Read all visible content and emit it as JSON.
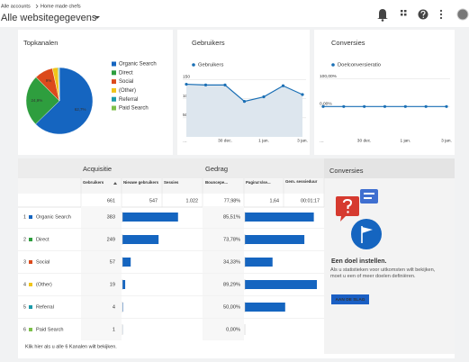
{
  "header": {
    "breadcrumb": [
      "Alle accounts",
      "Home made chefs"
    ],
    "title": "Alle websitegegevens"
  },
  "chart_data": [
    {
      "type": "pie",
      "title": "Topkanalen",
      "categories": [
        "Organic Search",
        "Direct",
        "Social",
        "(Other)",
        "Referral",
        "Paid Search"
      ],
      "values": [
        62.7,
        24.9,
        9,
        2.7,
        0.5,
        0.2
      ],
      "value_labels": [
        "62,7%",
        "24,9%",
        "9%",
        null,
        null,
        null
      ],
      "colors": [
        "#1565c0",
        "#2e9e3e",
        "#dc4a1c",
        "#f0c419",
        "#1b9aa9",
        "#7cc04a"
      ]
    },
    {
      "type": "line",
      "title": "Gebruikers",
      "categories": [
        "…",
        null,
        "30 dec.",
        null,
        "1 jan.",
        null,
        "3 jan."
      ],
      "series": [
        {
          "name": "Gebruikers",
          "color": "#1a6fb5",
          "values": [
            138,
            136,
            136,
            93,
            105,
            134,
            111
          ]
        }
      ],
      "ylim": [
        0,
        170
      ],
      "yticks": [
        50,
        100,
        150
      ],
      "grid": true,
      "area": true
    },
    {
      "type": "line",
      "title": "Conversies",
      "categories": [
        "…",
        null,
        "30 dec.",
        null,
        "1 jan.",
        null,
        "3 jan."
      ],
      "series": [
        {
          "name": "Doelconversieratio",
          "color": "#1a6fb5",
          "values": [
            0,
            0,
            0,
            0,
            0,
            0,
            0
          ]
        }
      ],
      "ylim": [
        -110,
        125
      ],
      "yticks": [
        {
          "value": 100,
          "label": "100,00%"
        },
        {
          "value": 0,
          "label": "0,00%"
        }
      ],
      "grid": true,
      "area": false
    }
  ],
  "table": {
    "groups": [
      "Acquisitie",
      "Gedrag"
    ],
    "columns": [
      "Gebruikers",
      "Nieuwe gebruikers",
      "Sessies",
      "Bouncepe...",
      "Pagina's/se...",
      "Gem. sessieduur"
    ],
    "totals": [
      "661",
      "547",
      "1.022",
      "77,98%",
      "1,64",
      "00:01:17"
    ],
    "rows": [
      {
        "rank": "1",
        "channel": "Organic Search",
        "color": "#1565c0",
        "users": 383,
        "bounce": {
          "value": 85.51,
          "label": "85,51%"
        }
      },
      {
        "rank": "2",
        "channel": "Direct",
        "color": "#2e9e3e",
        "users": 249,
        "bounce": {
          "value": 73.78,
          "label": "73,78%"
        }
      },
      {
        "rank": "3",
        "channel": "Social",
        "color": "#dc4a1c",
        "users": 57,
        "bounce": {
          "value": 34.33,
          "label": "34,33%"
        }
      },
      {
        "rank": "4",
        "channel": "(Other)",
        "color": "#f0c419",
        "users": 19,
        "bounce": {
          "value": 89.29,
          "label": "89,29%"
        }
      },
      {
        "rank": "5",
        "channel": "Referral",
        "color": "#1b9aa9",
        "users": 4,
        "bounce": {
          "value": 50.0,
          "label": "50,00%"
        }
      },
      {
        "rank": "6",
        "channel": "Paid Search",
        "color": "#7cc04a",
        "users": 1,
        "bounce": {
          "value": 0,
          "label": "0,00%"
        }
      }
    ],
    "footer": "Klik hier als u alle 6 Kanalen wilt bekijken."
  },
  "goal_card": {
    "title": "Conversies",
    "heading": "Een doel instellen.",
    "text": "Als u statistieken voor uitkomsten wilt bekijken, moet u een of meer doelen definiëren.",
    "button": "AAN DE SLAG"
  }
}
